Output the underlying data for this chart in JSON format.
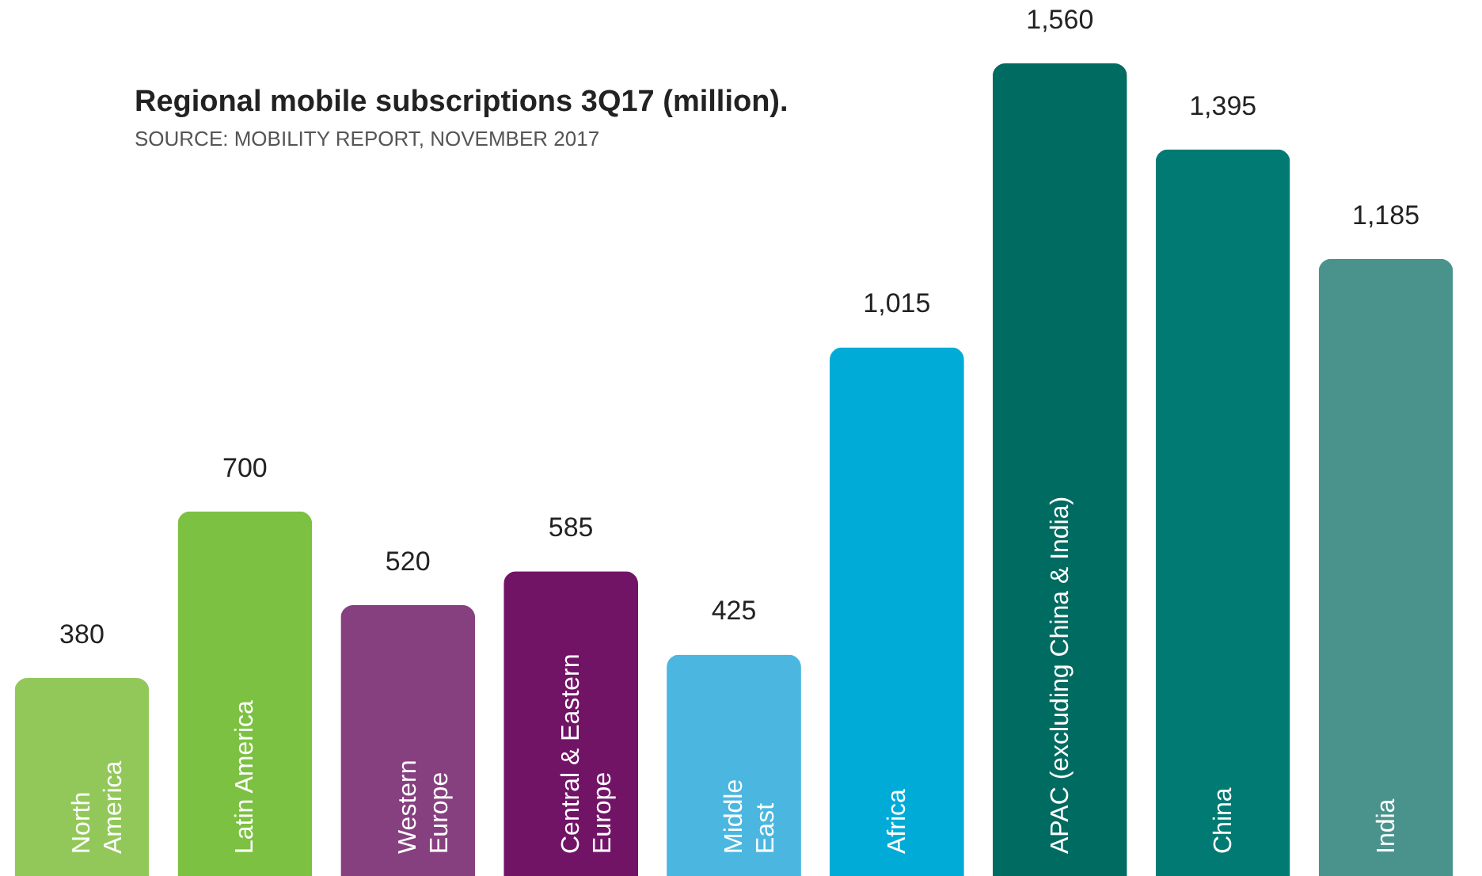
{
  "chart_data": {
    "type": "bar",
    "title": "Regional mobile subscriptions 3Q17 (million).",
    "annotations": [
      "SOURCE: MOBILITY REPORT, NOVEMBER 2017"
    ],
    "categories": [
      "North\nAmerica",
      "Latin America",
      "Western\nEurope",
      "Central & Eastern\nEurope",
      "Middle\nEast",
      "Africa",
      "APAC (excluding China & India)",
      "China",
      "India"
    ],
    "values": [
      380,
      700,
      520,
      585,
      425,
      1015,
      1560,
      1395,
      1185
    ],
    "colors": [
      "#92c85a",
      "#7cc142",
      "#86407f",
      "#721466",
      "#4bb7e0",
      "#00acd7",
      "#006b60",
      "#007a72",
      "#4a938d"
    ],
    "value_labels": [
      "380",
      "700",
      "520",
      "585",
      "425",
      "1,015",
      "1,560",
      "1,395",
      "1,185"
    ]
  }
}
